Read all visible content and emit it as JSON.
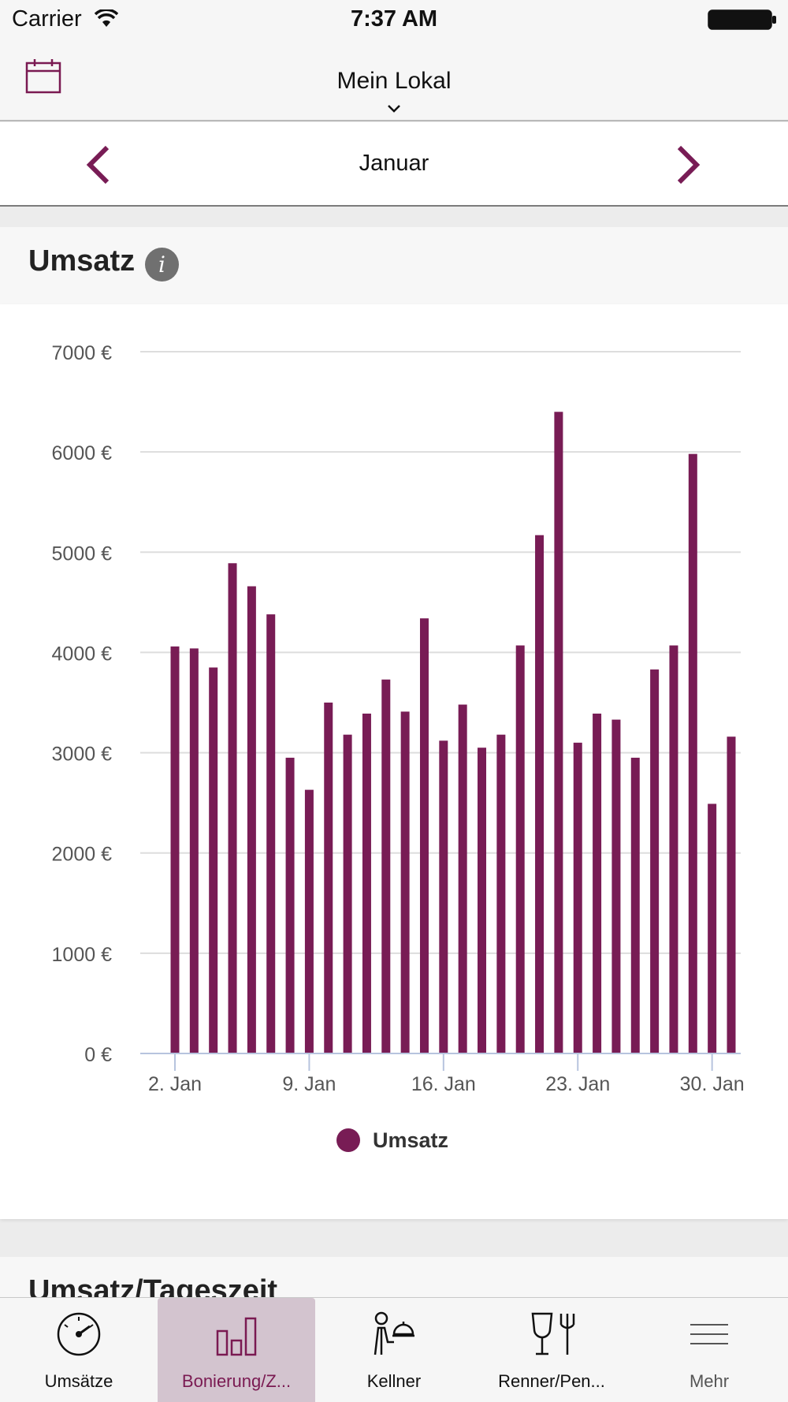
{
  "status_bar": {
    "carrier": "Carrier",
    "time": "7:37 AM"
  },
  "nav": {
    "title": "Mein Lokal"
  },
  "month_selector": {
    "label": "Januar"
  },
  "card": {
    "title": "Umsatz",
    "info_symbol": "i"
  },
  "card2": {
    "title": "Umsatz/Tageszeit"
  },
  "colors": {
    "accent": "#781c55",
    "selected_tab_bg": "#d3c4cf",
    "grid": "#dddddd"
  },
  "tabs": [
    {
      "label": "Umsätze",
      "icon": "speedometer-icon",
      "selected": false
    },
    {
      "label": "Bonierung/Z...",
      "icon": "bar-chart-icon",
      "selected": true
    },
    {
      "label": "Kellner",
      "icon": "waiter-icon",
      "selected": false
    },
    {
      "label": "Renner/Pen...",
      "icon": "glass-fork-icon",
      "selected": false
    },
    {
      "label": "Mehr",
      "icon": "menu-icon",
      "selected": false
    }
  ],
  "chart_data": {
    "type": "bar",
    "title": "",
    "xlabel": "",
    "ylabel": "",
    "ylim": [
      0,
      7000
    ],
    "ytick_labels": [
      "0 €",
      "1000 €",
      "2000 €",
      "3000 €",
      "4000 €",
      "5000 €",
      "6000 €",
      "7000 €"
    ],
    "ytick_values": [
      0,
      1000,
      2000,
      3000,
      4000,
      5000,
      6000,
      7000
    ],
    "xtick_labels": [
      "2. Jan",
      "9. Jan",
      "16. Jan",
      "23. Jan",
      "30. Jan"
    ],
    "xtick_days": [
      2,
      9,
      16,
      23,
      30
    ],
    "grid": true,
    "legend_position": "bottom-center",
    "categories": [
      2,
      3,
      4,
      5,
      6,
      7,
      8,
      9,
      10,
      11,
      12,
      13,
      14,
      15,
      16,
      17,
      18,
      19,
      20,
      21,
      22,
      23,
      24,
      25,
      26,
      27,
      28,
      29,
      30,
      31
    ],
    "series": [
      {
        "name": "Umsatz",
        "values": [
          4060,
          4040,
          3850,
          4890,
          4660,
          4380,
          2950,
          2630,
          3500,
          3180,
          3390,
          3730,
          3410,
          4340,
          3120,
          3480,
          3050,
          3180,
          4070,
          5170,
          6400,
          3100,
          3390,
          3330,
          2950,
          3830,
          4070,
          5980,
          2490,
          3160
        ]
      }
    ]
  }
}
